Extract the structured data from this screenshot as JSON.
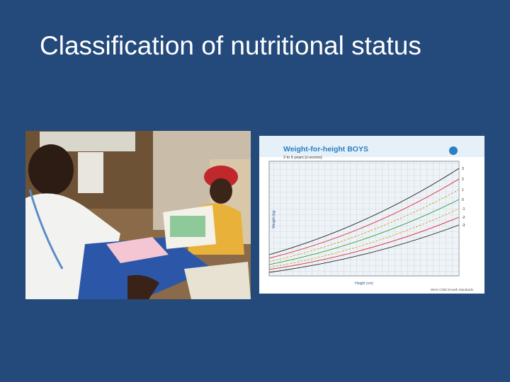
{
  "title": "Classification of nutritional status",
  "growth_chart": {
    "title": "Weight-for-height BOYS",
    "subtitle": "2 to 5 years (z-scores)",
    "y_label": "Weight (kg)",
    "x_label": "Height (cm)",
    "footer": "WHO Child Growth Standards",
    "z_scores": [
      "3",
      "2",
      "1",
      "0",
      "-1",
      "-2",
      "-3"
    ]
  }
}
